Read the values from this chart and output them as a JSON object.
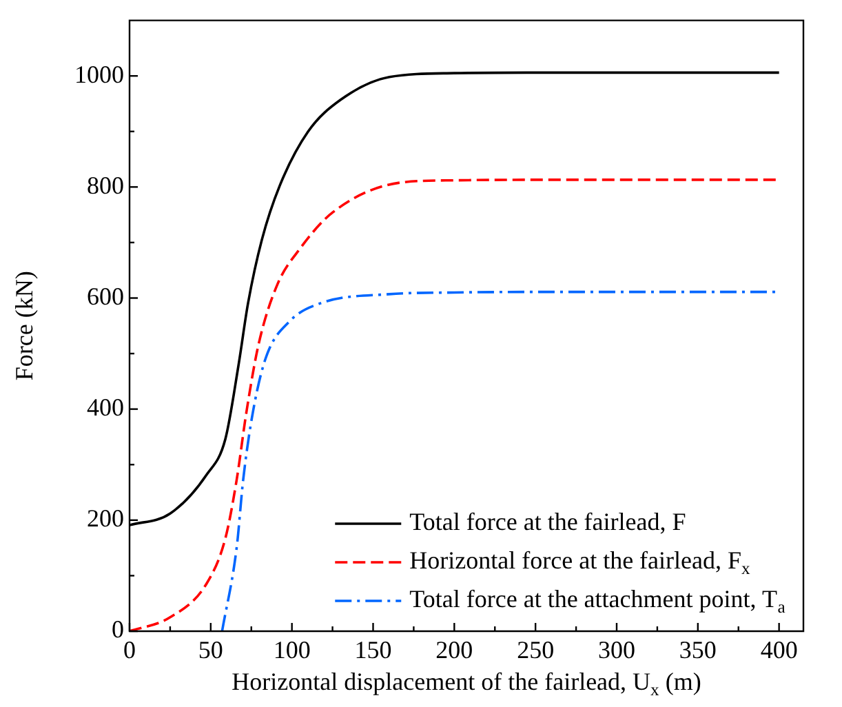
{
  "chart_data": {
    "type": "line",
    "xlabel": "Horizontal displacement of the fairlead, U$_{x}$ (m)",
    "ylabel": "Force (kN)",
    "xlim": [
      0,
      415
    ],
    "ylim": [
      0,
      1100
    ],
    "xticks": [
      0,
      {
        "value": 25,
        "label": null
      },
      50,
      {
        "value": 75,
        "label": null
      },
      100,
      {
        "value": 125,
        "label": null
      },
      150,
      {
        "value": 175,
        "label": null
      },
      200,
      {
        "value": 225,
        "label": null
      },
      250,
      {
        "value": 275,
        "label": null
      },
      300,
      {
        "value": 325,
        "label": null
      },
      350,
      {
        "value": 375,
        "label": null
      },
      400
    ],
    "yticks": [
      0,
      {
        "value": 100,
        "label": null
      },
      200,
      {
        "value": 300,
        "label": null
      },
      400,
      {
        "value": 500,
        "label": null
      },
      600,
      {
        "value": 700,
        "label": null
      },
      800,
      {
        "value": 900,
        "label": null
      },
      1000
    ],
    "grid": false,
    "legend": "bottom right",
    "marker": "none",
    "series": [
      {
        "name": "Total force at the fairlead, F",
        "color": "#000000",
        "line_style": "solid",
        "x": [
          0,
          25,
          47.5,
          59,
          67,
          73,
          81.5,
          92.6,
          110,
          130,
          160,
          200,
          250,
          300,
          350,
          400
        ],
        "values": [
          191,
          212,
          282,
          346,
          477,
          591,
          705,
          803,
          900,
          957,
          998,
          1005,
          1006,
          1006,
          1006,
          1006
        ]
      },
      {
        "name": "Horizontal force at the fairlead, F$_{x}$",
        "color": "#ff0000",
        "line_style": "dashed",
        "x": [
          0,
          25,
          47.5,
          59,
          66,
          72,
          79.5,
          91,
          105,
          125,
          167,
          200,
          250,
          300,
          350,
          400
        ],
        "values": [
          0,
          25,
          86,
          167,
          273,
          395,
          517,
          624,
          689,
          754,
          808,
          812,
          813,
          813,
          813,
          813
        ]
      },
      {
        "name": "Total force at the attachment point, T$_{a}$",
        "color": "#0066ff",
        "line_style": "dashdot",
        "x": [
          57,
          66,
          70,
          76,
          84,
          98.5,
          118,
          160,
          200,
          250,
          300,
          350,
          400
        ],
        "values": [
          0,
          151,
          273,
          395,
          493,
          558,
          591,
          607,
          610,
          611,
          611,
          611,
          611
        ]
      }
    ]
  }
}
